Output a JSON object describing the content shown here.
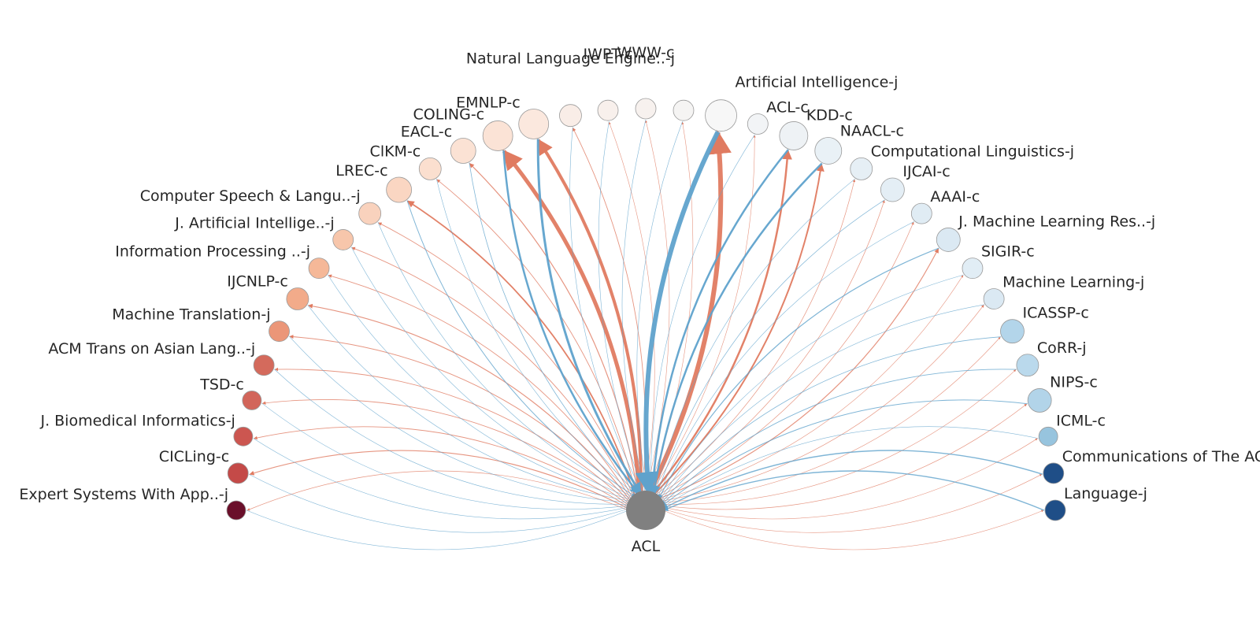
{
  "center": {
    "label": "ACL",
    "color": "#808080"
  },
  "colors": {
    "out_edge": "#e07b61",
    "in_edge": "#5fa2cc",
    "node_stroke": "#9a9a9a"
  },
  "nodes": [
    {
      "label": "Expert Systems With App..-j",
      "color": "#6a0f2a",
      "r": 12,
      "ow": 0.7,
      "iw": 0.6
    },
    {
      "label": "CICLing-c",
      "color": "#c44a48",
      "r": 13,
      "ow": 1.2,
      "iw": 0.6
    },
    {
      "label": "J. Biomedical Informatics-j",
      "color": "#cc5650",
      "r": 12,
      "ow": 0.9,
      "iw": 0.6
    },
    {
      "label": "TSD-c",
      "color": "#d2655a",
      "r": 12,
      "ow": 0.9,
      "iw": 0.6
    },
    {
      "label": "ACM Trans on Asian Lang..-j",
      "color": "#d46a5c",
      "r": 13,
      "ow": 0.9,
      "iw": 0.6
    },
    {
      "label": "Machine Translation-j",
      "color": "#eb9678",
      "r": 13,
      "ow": 1.0,
      "iw": 0.6
    },
    {
      "label": "IJCNLP-c",
      "color": "#f2ab8a",
      "r": 14,
      "ow": 1.2,
      "iw": 0.6
    },
    {
      "label": "Information Processing ..-j",
      "color": "#f5b898",
      "r": 13,
      "ow": 0.9,
      "iw": 0.6
    },
    {
      "label": "J. Artificial Intellige..-j",
      "color": "#f7c6ab",
      "r": 13,
      "ow": 0.9,
      "iw": 0.6
    },
    {
      "label": "Computer Speech & Langu..-j",
      "color": "#f9d2bd",
      "r": 14,
      "ow": 0.9,
      "iw": 0.6
    },
    {
      "label": "LREC-c",
      "color": "#fad6c2",
      "r": 16,
      "ow": 1.8,
      "iw": 1.0
    },
    {
      "label": "ClKM-c",
      "color": "#fbdfcf",
      "r": 14,
      "ow": 0.9,
      "iw": 0.6
    },
    {
      "label": "EACL-c",
      "color": "#fbe2d4",
      "r": 16,
      "ow": 1.2,
      "iw": 0.8
    },
    {
      "label": "COLING-c",
      "color": "#fbe3d6",
      "r": 19,
      "ow": 5.0,
      "iw": 2.5
    },
    {
      "label": "EMNLP-c",
      "color": "#fbe8de",
      "r": 19,
      "ow": 4.0,
      "iw": 3.0
    },
    {
      "label": "Natural Language Engine..-j",
      "color": "#f9ede7",
      "r": 14,
      "ow": 0.9,
      "iw": 0.6
    },
    {
      "label": "IWPT-c",
      "color": "#f8f0ec",
      "r": 13,
      "ow": 0.6,
      "iw": 0.6
    },
    {
      "label": "WWW-c",
      "color": "#f7f1ee",
      "r": 13,
      "ow": 0.6,
      "iw": 0.6
    },
    {
      "label": "",
      "color": "#f5f4f3",
      "r": 13,
      "ow": 0.6,
      "iw": 0.6
    },
    {
      "label": "Artificial Intelligence-j",
      "color": "#f7f7f7",
      "r": 20,
      "ow": 6.0,
      "iw": 6.0
    },
    {
      "label": "ACL-c",
      "color": "#f2f4f6",
      "r": 13,
      "ow": 0.6,
      "iw": 0.6
    },
    {
      "label": "KDD-c",
      "color": "#eef2f5",
      "r": 18,
      "ow": 2.5,
      "iw": 2.5
    },
    {
      "label": "NAACL-c",
      "color": "#e9f1f6",
      "r": 17,
      "ow": 2.0,
      "iw": 2.5
    },
    {
      "label": "Computational Linguistics-j",
      "color": "#e6eff5",
      "r": 14,
      "ow": 0.7,
      "iw": 0.6
    },
    {
      "label": "IJCAI-c",
      "color": "#e4eef5",
      "r": 15,
      "ow": 0.7,
      "iw": 0.7
    },
    {
      "label": "AAAI-c",
      "color": "#e0ecf4",
      "r": 13,
      "ow": 0.7,
      "iw": 0.6
    },
    {
      "label": "J. Machine Learning Res..-j",
      "color": "#dbe9f3",
      "r": 15,
      "ow": 1.2,
      "iw": 1.2
    },
    {
      "label": "SIGIR-c",
      "color": "#e1edf5",
      "r": 13,
      "ow": 0.6,
      "iw": 0.6
    },
    {
      "label": "Machine Learning-j",
      "color": "#dbe9f3",
      "r": 13,
      "ow": 0.7,
      "iw": 0.6
    },
    {
      "label": "ICASSP-c",
      "color": "#b3d5ea",
      "r": 15,
      "ow": 0.6,
      "iw": 0.8
    },
    {
      "label": "CoRR-j",
      "color": "#bad9ec",
      "r": 14,
      "ow": 0.6,
      "iw": 0.9
    },
    {
      "label": "NIPS-c",
      "color": "#b2d4e9",
      "r": 15,
      "ow": 0.7,
      "iw": 1.0
    },
    {
      "label": "ICML-c",
      "color": "#97c4de",
      "r": 12,
      "ow": 0.6,
      "iw": 0.6
    },
    {
      "label": "Communications of The AC",
      "color": "#1f4e87",
      "r": 13,
      "ow": 0.6,
      "iw": 1.4
    },
    {
      "label": "Language-j",
      "color": "#1f4e87",
      "r": 13,
      "ow": 0.6,
      "iw": 1.4
    }
  ]
}
